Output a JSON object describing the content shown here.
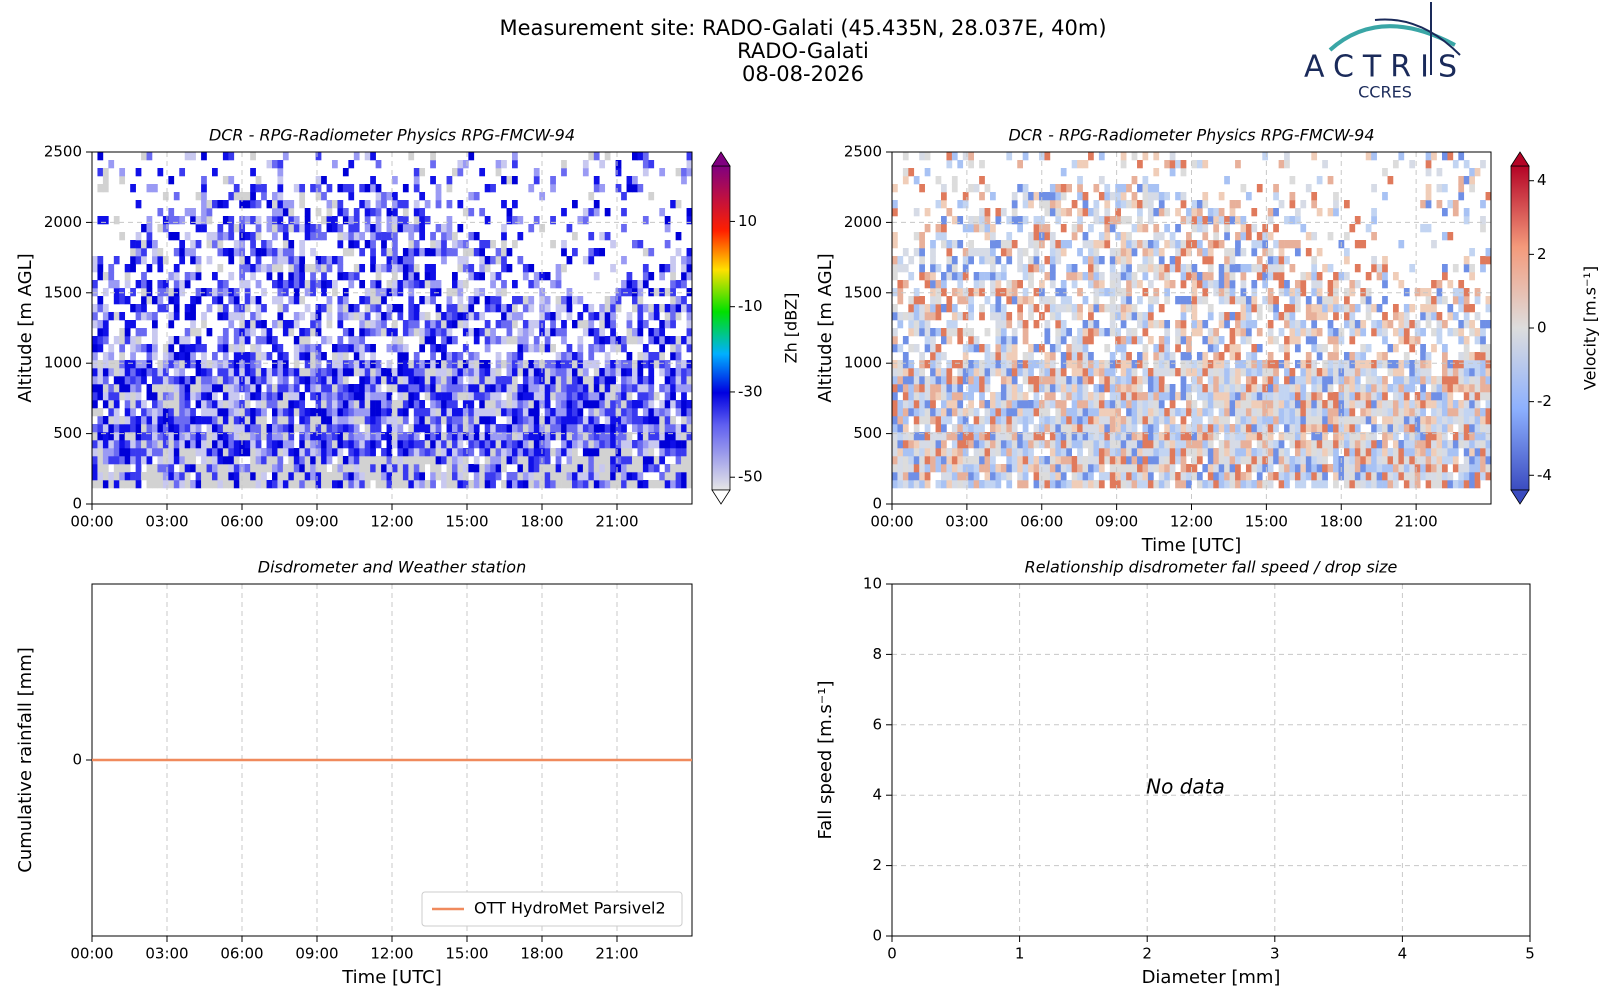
{
  "header": {
    "title": [
      "Measurement site: RADO-Galati (45.435N, 28.037E, 40m)",
      "RADO-Galati",
      "08-08-2026"
    ],
    "logo": {
      "name": "ACTRIS",
      "subtitle": "CCRES"
    }
  },
  "chart_data": [
    {
      "type": "heatmap",
      "title": "DCR - RPG-Radiometer Physics RPG-FMCW-94",
      "ylabel": "Altitude [m AGL]",
      "xlim": [
        0,
        24
      ],
      "xticks": [
        {
          "value": 0,
          "label": "00:00"
        },
        {
          "value": 3,
          "label": "03:00"
        },
        {
          "value": 6,
          "label": "06:00"
        },
        {
          "value": 9,
          "label": "09:00"
        },
        {
          "value": 12,
          "label": "12:00"
        },
        {
          "value": 15,
          "label": "15:00"
        },
        {
          "value": 18,
          "label": "18:00"
        },
        {
          "value": 21,
          "label": "21:00"
        }
      ],
      "ylim": [
        0,
        2500
      ],
      "yticks": [
        0,
        500,
        1000,
        1500,
        2000,
        2500
      ],
      "grid": true,
      "colormap": "reflectivity",
      "colorbar": {
        "label": "Zh [dBZ]",
        "lim": [
          -53,
          23
        ],
        "ticks": [
          -50,
          -30,
          -10,
          10
        ]
      }
    },
    {
      "type": "heatmap",
      "title": "DCR - RPG-Radiometer Physics RPG-FMCW-94",
      "ylabel": "Altitude [m AGL]",
      "xlabel": "Time [UTC]",
      "xlim": [
        0,
        24
      ],
      "xticks": [
        {
          "value": 0,
          "label": "00:00"
        },
        {
          "value": 3,
          "label": "03:00"
        },
        {
          "value": 6,
          "label": "06:00"
        },
        {
          "value": 9,
          "label": "09:00"
        },
        {
          "value": 12,
          "label": "12:00"
        },
        {
          "value": 15,
          "label": "15:00"
        },
        {
          "value": 18,
          "label": "18:00"
        },
        {
          "value": 21,
          "label": "21:00"
        }
      ],
      "ylim": [
        0,
        2500
      ],
      "yticks": [
        0,
        500,
        1000,
        1500,
        2000,
        2500
      ],
      "grid": true,
      "colormap": "coolwarm",
      "colorbar": {
        "label": "Velocity [m.s⁻¹]",
        "lim": [
          -4.4,
          4.4
        ],
        "ticks": [
          -4,
          -2,
          0,
          2,
          4
        ]
      }
    },
    {
      "type": "line",
      "title": "Disdrometer and Weather station",
      "ylabel": "Cumulative rainfall [mm]",
      "xlabel": "Time [UTC]",
      "xlim": [
        0,
        24
      ],
      "xticks": [
        {
          "value": 0,
          "label": "00:00"
        },
        {
          "value": 3,
          "label": "03:00"
        },
        {
          "value": 6,
          "label": "06:00"
        },
        {
          "value": 9,
          "label": "09:00"
        },
        {
          "value": 12,
          "label": "12:00"
        },
        {
          "value": 15,
          "label": "15:00"
        },
        {
          "value": 18,
          "label": "18:00"
        },
        {
          "value": 21,
          "label": "21:00"
        }
      ],
      "ylim": [
        -0.055,
        0.055
      ],
      "yticks": [
        0
      ],
      "grid": true,
      "legend": "lower right",
      "series": [
        {
          "name": "OTT HydroMet Parsivel2",
          "color": "#f08a5d",
          "x": [
            0,
            24
          ],
          "values": [
            0,
            0
          ]
        }
      ]
    },
    {
      "type": "scatter",
      "title": "Relationship disdrometer fall speed / drop size",
      "ylabel": "Fall speed [m.s⁻¹]",
      "xlabel": "Diameter [mm]",
      "xlim": [
        0,
        5
      ],
      "xticks": [
        0,
        1,
        2,
        3,
        4,
        5
      ],
      "ylim": [
        0,
        10
      ],
      "yticks": [
        0,
        2,
        4,
        6,
        8,
        10
      ],
      "grid": true,
      "annotation": "No data",
      "series": []
    }
  ]
}
